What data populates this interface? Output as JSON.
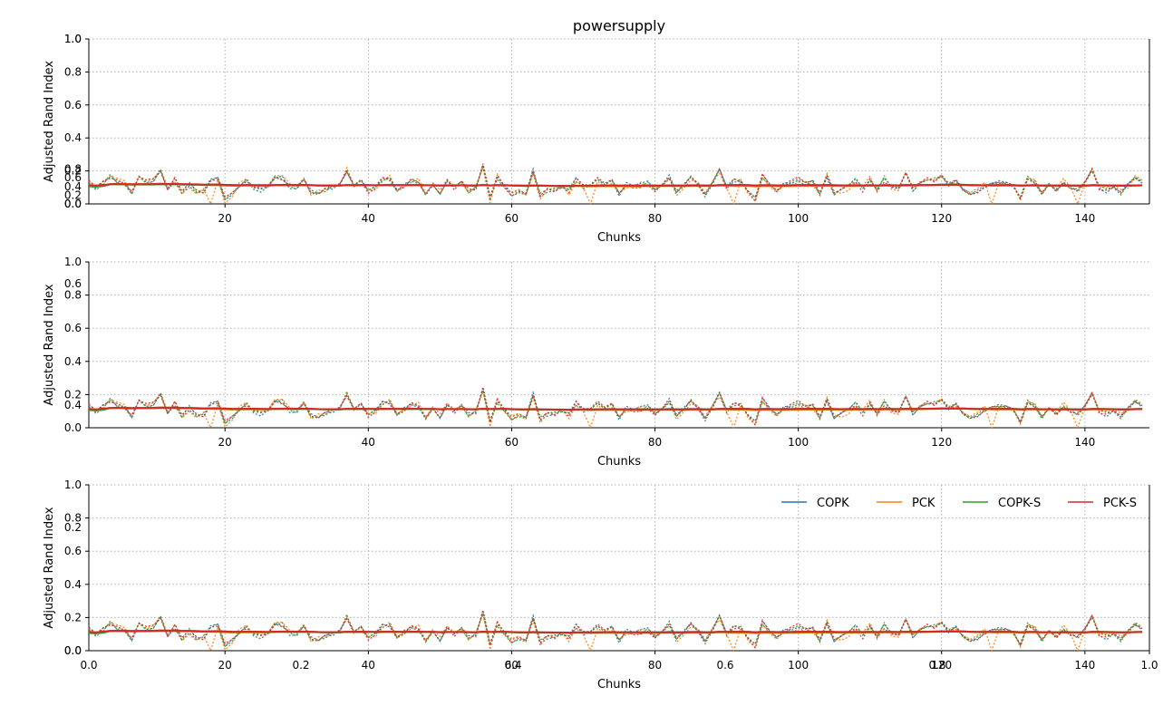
{
  "colors": {
    "COPK": "#1f77b4",
    "PCK": "#ff7f0e",
    "COPK-S": "#2ca02c",
    "PCK-S": "#d62728",
    "grid": "#b0b0b0"
  },
  "chart_data": [
    {
      "type": "line",
      "title": "powersupply",
      "xlabel": "Chunks",
      "ylabel": "Adjusted Rand Index",
      "xlim": [
        1,
        149
      ],
      "ylim": [
        0,
        1.0
      ],
      "xticks": [
        20,
        40,
        60,
        80,
        100,
        120,
        140
      ],
      "yticks": [
        "0.0",
        "0.2",
        "0.4",
        "0.6",
        "0.8",
        "1.0"
      ],
      "overlay_yticks": [
        "0.0",
        "0.2",
        "0.4",
        "0.6",
        "0.8",
        "1.0"
      ],
      "grid": true,
      "series_names": [
        "COPK",
        "PCK",
        "COPK-S",
        "PCK-S"
      ],
      "note": "raw series dotted (ARI ~0.02-0.25 per chunk), smoothed series solid ~0.10-0.12"
    },
    {
      "type": "line",
      "title": "",
      "xlabel": "Chunks",
      "ylabel": "Adjusted Rand Index",
      "xlim": [
        1,
        149
      ],
      "ylim": [
        0,
        1.0
      ],
      "xticks": [
        20,
        40,
        60,
        80,
        100,
        120,
        140
      ],
      "yticks": [
        "0.0",
        "0.2",
        "0.4",
        "0.6",
        "0.8",
        "1.0"
      ],
      "overlay_yticks": [
        "0.4",
        "0.6"
      ],
      "grid": true
    },
    {
      "type": "line",
      "title": "",
      "xlabel": "Chunks",
      "ylabel": "Adjusted Rand Index",
      "xlim": [
        1,
        149
      ],
      "ylim": [
        0,
        1.0
      ],
      "xticks": [
        20,
        40,
        60,
        80,
        100,
        120,
        140
      ],
      "yticks": [
        "0.0",
        "0.2",
        "0.4",
        "0.6",
        "0.8",
        "1.0"
      ],
      "overlay_yticks": [
        "0.0",
        "0.2"
      ],
      "overlay_xticks": [
        "0.0",
        "0.2",
        "0.4",
        "0.6",
        "0.8",
        "1.0"
      ],
      "grid": true,
      "legend": {
        "placement": "upper-right",
        "entries": [
          "COPK",
          "PCK",
          "COPK-S",
          "PCK-S"
        ]
      }
    }
  ]
}
